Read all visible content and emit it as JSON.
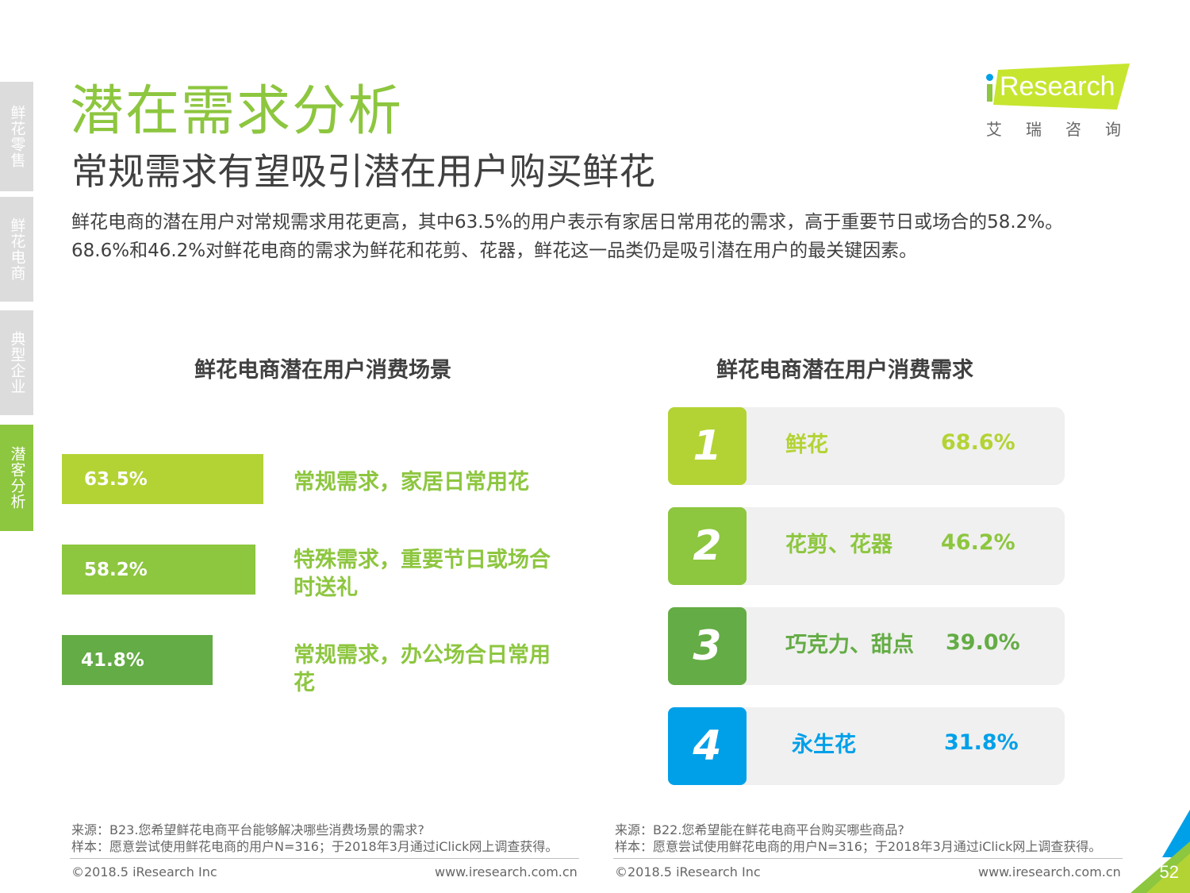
{
  "side_tabs": [
    {
      "label": "鲜花零售",
      "active": false
    },
    {
      "label": "鲜花电商",
      "active": false
    },
    {
      "label": "典型企业",
      "active": false
    },
    {
      "label": "潜客分析",
      "active": true
    }
  ],
  "title": "潜在需求分析",
  "subtitle": "常规需求有望吸引潜在用户购买鲜花",
  "summary": "鲜花电商的潜在用户对常规需求用花更高，其中63.5%的用户表示有家居日常用花的需求，高于重要节日或场合的58.2%。68.6%和46.2%对鲜花电商的需求为鲜花和花剪、花器，鲜花这一品类仍是吸引潜在用户的最关键因素。",
  "logo": {
    "text": "Research",
    "cn": "艾瑞咨询",
    "green": "#c6e52f",
    "blue": "#00a0e9"
  },
  "colors": {
    "green": "#8dc63f",
    "lime": "#b3d334",
    "dark_green": "#64ac45",
    "blue": "#00a0e9"
  },
  "chart_data": [
    {
      "type": "bar",
      "title": "鲜花电商潜在用户消费场景",
      "categories": [
        "常规需求，家居日常用花",
        "特殊需求，重要节日或场合时送礼",
        "常规需求，办公场合日常用花"
      ],
      "values": [
        63.5,
        58.2,
        41.8
      ],
      "value_labels": [
        "63.5%",
        "58.2%",
        "41.8%"
      ],
      "colors": [
        "#b3d334",
        "#8dc63f",
        "#64ac45"
      ]
    },
    {
      "type": "table",
      "title": "鲜花电商潜在用户消费需求",
      "rows": [
        {
          "rank": "1",
          "name": "鲜花",
          "value": 68.6,
          "label": "68.6%",
          "color": "#b3d334"
        },
        {
          "rank": "2",
          "name": "花剪、花器",
          "value": 46.2,
          "label": "46.2%",
          "color": "#8dc63f"
        },
        {
          "rank": "3",
          "name": "巧克力、甜点",
          "value": 39.0,
          "label": "39.0%",
          "color": "#64ac45"
        },
        {
          "rank": "4",
          "name": "永生花",
          "value": 31.8,
          "label": "31.8%",
          "color": "#00a0e9"
        }
      ]
    }
  ],
  "sources": {
    "left": {
      "source": "来源：B23.您希望鲜花电商平台能够解决哪些消费场景的需求?",
      "sample": "样本：愿意尝试使用鲜花电商的用户N=316；于2018年3月通过iClick网上调查获得。"
    },
    "right": {
      "source": "来源：B22.您希望能在鲜花电商平台购买哪些商品?",
      "sample": "样本：愿意尝试使用鲜花电商的用户N=316；于2018年3月通过iClick网上调查获得。"
    }
  },
  "footer": {
    "copyright": "©2018.5 iResearch Inc",
    "url": "www.iresearch.com.cn"
  },
  "page_number": "52"
}
